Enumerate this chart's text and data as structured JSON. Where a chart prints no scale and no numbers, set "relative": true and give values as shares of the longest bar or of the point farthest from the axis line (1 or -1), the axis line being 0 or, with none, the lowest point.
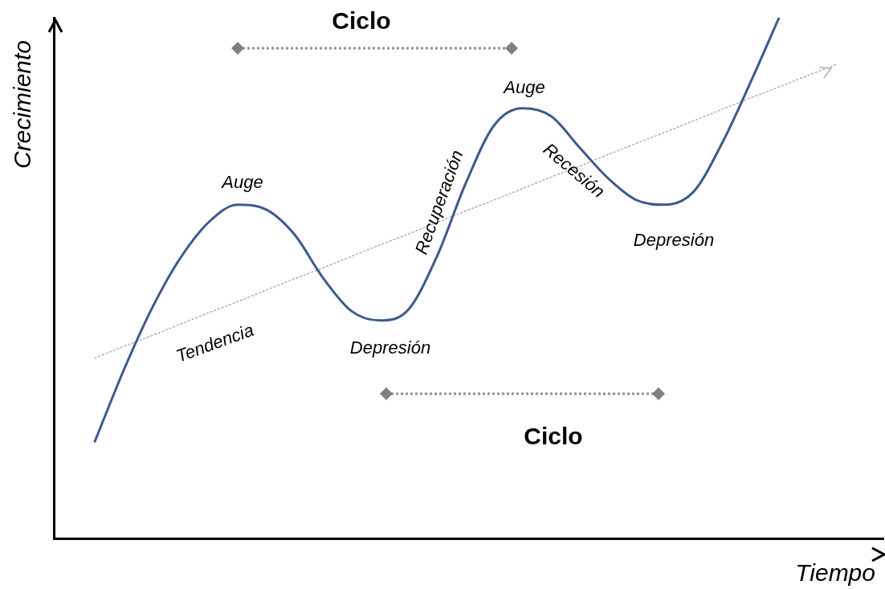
{
  "chart_data": {
    "type": "line",
    "relative": true,
    "xlabel": "Tiempo",
    "ylabel": "Crecimiento",
    "categories": [
      null,
      null,
      null,
      null,
      null,
      null,
      null,
      null,
      null,
      null,
      null,
      null,
      null,
      null,
      null,
      null,
      null,
      null,
      null,
      null,
      null,
      null,
      null,
      null,
      null,
      null,
      null
    ],
    "series": [
      {
        "color": "#3b5a8a",
        "line_style": "solid",
        "values": [
          0.187,
          0.322,
          0.442,
          0.539,
          0.608,
          0.641,
          0.632,
          0.584,
          0.501,
          0.437,
          0.419,
          0.44,
          0.542,
          0.681,
          0.793,
          0.826,
          0.811,
          0.751,
          0.692,
          0.65,
          0.641,
          0.666,
          0.759,
          0.876,
          1.0,
          null,
          null
        ]
      },
      {
        "color": "#b0b0b0",
        "line_style": "dotted",
        "values": [
          0.347,
          0.369,
          0.39,
          0.412,
          0.434,
          0.455,
          0.477,
          0.499,
          0.52,
          0.542,
          0.564,
          0.585,
          0.607,
          0.629,
          0.65,
          0.672,
          0.694,
          0.715,
          0.737,
          0.759,
          0.78,
          0.802,
          0.824,
          0.846,
          0.867,
          0.889,
          0.91
        ]
      }
    ],
    "annotations": [
      "Ciclo",
      "Auge",
      "Auge",
      "Recuperación",
      "Recesión",
      "Depresión",
      "Depresión",
      "Tendencia",
      "Ciclo"
    ],
    "grid": false,
    "legend": false,
    "marker": "none"
  }
}
